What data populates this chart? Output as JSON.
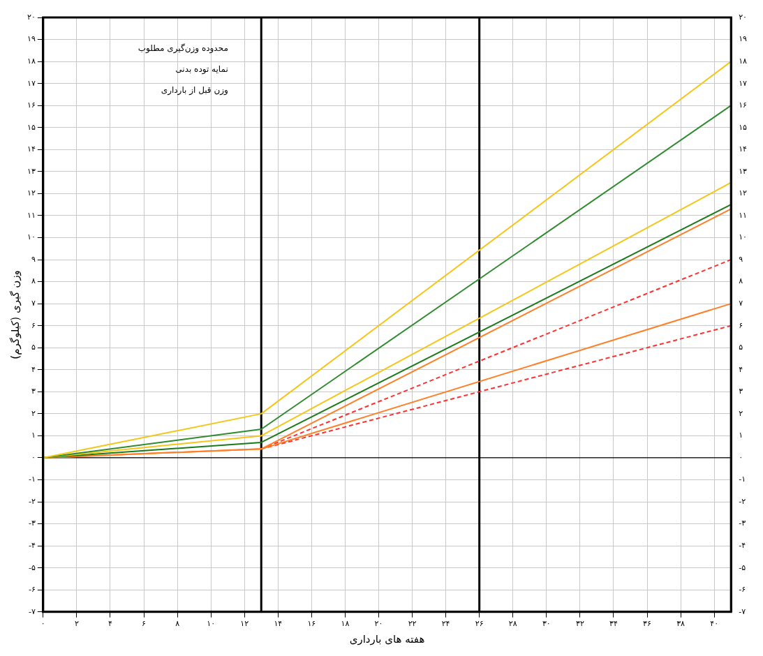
{
  "chart_data": {
    "type": "line",
    "xlabel": "هفته های بارداری",
    "ylabel": "وزن گیری (کیلوگرم)",
    "xlim": [
      0,
      41
    ],
    "xticks": [
      {
        "value": 0,
        "label": "۰"
      },
      {
        "value": 2,
        "label": "۲"
      },
      {
        "value": 4,
        "label": "۴"
      },
      {
        "value": 6,
        "label": "۶"
      },
      {
        "value": 8,
        "label": "۸"
      },
      {
        "value": 10,
        "label": "۱۰"
      },
      {
        "value": 12,
        "label": "۱۲"
      },
      {
        "value": 14,
        "label": "۱۴"
      },
      {
        "value": 16,
        "label": "۱۶"
      },
      {
        "value": 18,
        "label": "۱۸"
      },
      {
        "value": 20,
        "label": "۲۰"
      },
      {
        "value": 22,
        "label": "۲۲"
      },
      {
        "value": 24,
        "label": "۲۴"
      },
      {
        "value": 26,
        "label": "۲۶"
      },
      {
        "value": 28,
        "label": "۲۸"
      },
      {
        "value": 30,
        "label": "۳۰"
      },
      {
        "value": 32,
        "label": "۳۲"
      },
      {
        "value": 34,
        "label": "۳۴"
      },
      {
        "value": 36,
        "label": "۳۶"
      },
      {
        "value": 38,
        "label": "۳۸"
      },
      {
        "value": 40,
        "label": "۴۰"
      }
    ],
    "ylim": [
      -7,
      20
    ],
    "yticks": [
      {
        "value": -7,
        "label": "-۷"
      },
      {
        "value": -6,
        "label": "-۶"
      },
      {
        "value": -5,
        "label": "-۵"
      },
      {
        "value": -4,
        "label": "-۴"
      },
      {
        "value": -3,
        "label": "-۳"
      },
      {
        "value": -2,
        "label": "-۲"
      },
      {
        "value": -1,
        "label": "-۱"
      },
      {
        "value": 0,
        "label": "۰"
      },
      {
        "value": 1,
        "label": "۱"
      },
      {
        "value": 2,
        "label": "۲"
      },
      {
        "value": 3,
        "label": "۳"
      },
      {
        "value": 4,
        "label": "۴"
      },
      {
        "value": 5,
        "label": "۵"
      },
      {
        "value": 6,
        "label": "۶"
      },
      {
        "value": 7,
        "label": "۷"
      },
      {
        "value": 8,
        "label": "۸"
      },
      {
        "value": 9,
        "label": "۹"
      },
      {
        "value": 10,
        "label": "۱۰"
      },
      {
        "value": 11,
        "label": "۱۱"
      },
      {
        "value": 12,
        "label": "۱۲"
      },
      {
        "value": 13,
        "label": "۱۳"
      },
      {
        "value": 14,
        "label": "۱۴"
      },
      {
        "value": 15,
        "label": "۱۵"
      },
      {
        "value": 16,
        "label": "۱۶"
      },
      {
        "value": 17,
        "label": "۱۷"
      },
      {
        "value": 18,
        "label": "۱۸"
      },
      {
        "value": 19,
        "label": "۱۹"
      },
      {
        "value": 20,
        "label": "۲۰"
      }
    ],
    "y2lim": [
      -7,
      20
    ],
    "y2ticks": [
      {
        "value": -7,
        "label": "-۷"
      },
      {
        "value": -6,
        "label": "-۶"
      },
      {
        "value": -5,
        "label": "-۵"
      },
      {
        "value": -4,
        "label": "-۴"
      },
      {
        "value": -3,
        "label": "-۳"
      },
      {
        "value": -2,
        "label": "-۲"
      },
      {
        "value": -1,
        "label": "-۱"
      },
      {
        "value": 0,
        "label": "۰"
      },
      {
        "value": 1,
        "label": "۱"
      },
      {
        "value": 2,
        "label": "۲"
      },
      {
        "value": 3,
        "label": "۳"
      },
      {
        "value": 4,
        "label": "۴"
      },
      {
        "value": 5,
        "label": "۵"
      },
      {
        "value": 6,
        "label": "۶"
      },
      {
        "value": 7,
        "label": "۷"
      },
      {
        "value": 8,
        "label": "۸"
      },
      {
        "value": 9,
        "label": "۹"
      },
      {
        "value": 10,
        "label": "۱۰"
      },
      {
        "value": 11,
        "label": "۱۱"
      },
      {
        "value": 12,
        "label": "۱۲"
      },
      {
        "value": 13,
        "label": "۱۳"
      },
      {
        "value": 14,
        "label": "۱۴"
      },
      {
        "value": 15,
        "label": "۱۵"
      },
      {
        "value": 16,
        "label": "۱۶"
      },
      {
        "value": 17,
        "label": "۱۷"
      },
      {
        "value": 18,
        "label": "۱۸"
      },
      {
        "value": 19,
        "label": "۱۹"
      },
      {
        "value": 20,
        "label": "۲۰"
      }
    ],
    "series": [
      {
        "color": "#f5c518",
        "x": [
          0,
          13,
          41
        ],
        "values": [
          0,
          2,
          18
        ]
      },
      {
        "color": "#2e8b2e",
        "x": [
          0,
          13,
          41
        ],
        "values": [
          0,
          1.3,
          16
        ]
      },
      {
        "color": "#f5c518",
        "x": [
          0,
          13,
          41
        ],
        "values": [
          0,
          1,
          12.5
        ]
      },
      {
        "color": "#1a7a1a",
        "x": [
          0,
          13,
          41
        ],
        "values": [
          0,
          0.7,
          11.5
        ]
      },
      {
        "color": "#ff7f27",
        "x": [
          0,
          13,
          41
        ],
        "values": [
          0,
          0.4,
          11.3
        ]
      },
      {
        "color": "#ff7f27",
        "x": [
          0,
          13,
          41
        ],
        "values": [
          0,
          0.4,
          7
        ]
      },
      {
        "color": "#ff3030",
        "line_style": "dashed",
        "x": [
          13,
          41
        ],
        "values": [
          0.4,
          9
        ]
      },
      {
        "color": "#ff3030",
        "line_style": "dashed",
        "x": [
          13,
          41
        ],
        "values": [
          0.4,
          6
        ]
      }
    ],
    "ref_lines": [
      {
        "axis": "x",
        "value": 13,
        "color": "#000000"
      },
      {
        "axis": "x",
        "value": 26,
        "color": "#000000"
      },
      {
        "axis": "y",
        "value": 0,
        "color": "#000000"
      }
    ],
    "annotations": [
      "محدوده وزن‌گیری مطلوب",
      "نمایه توده بدنی",
      "وزن قبل از بارداری"
    ],
    "grid": true,
    "legend": false,
    "marker": "none",
    "line_style": "solid"
  }
}
